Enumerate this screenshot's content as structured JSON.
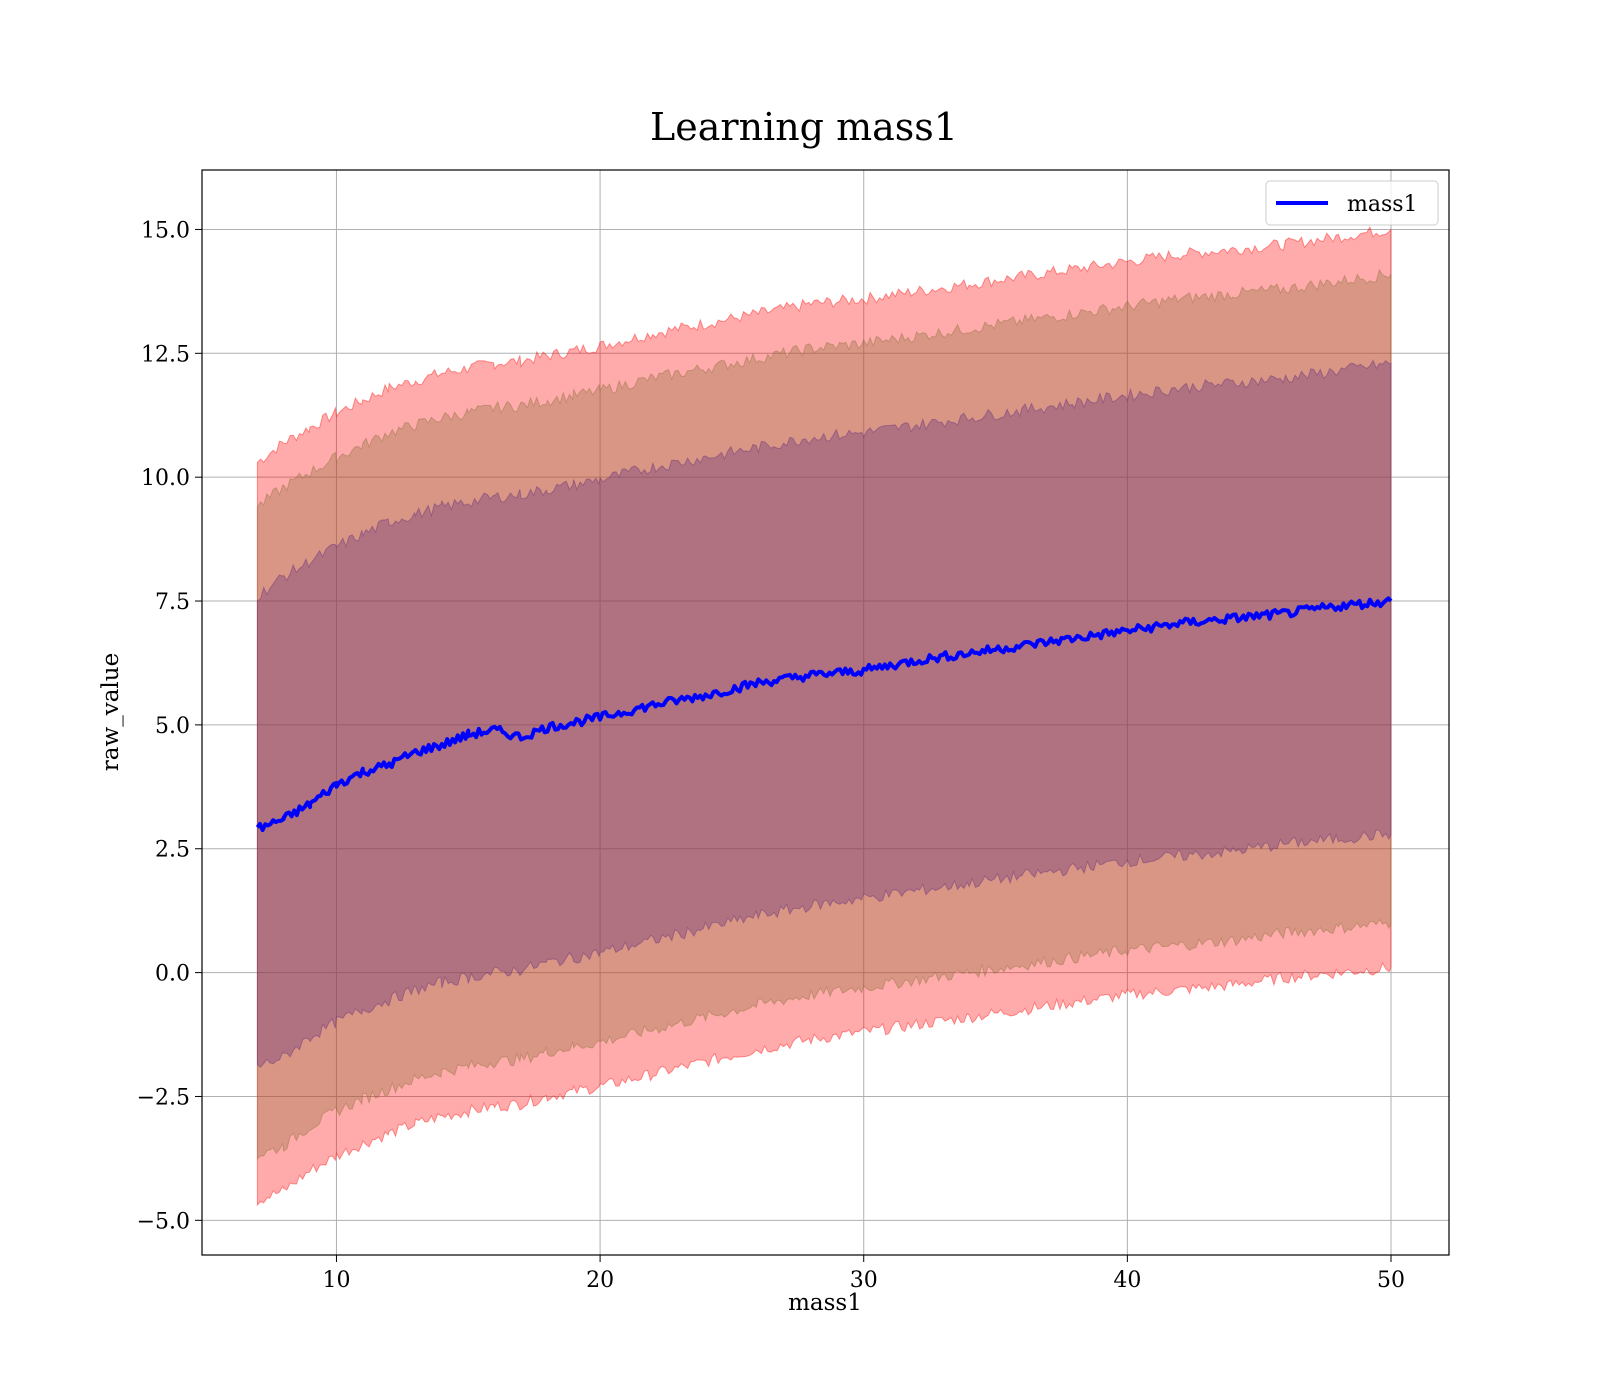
{
  "chart_data": {
    "type": "line",
    "title": "Learning mass1",
    "xlabel": "mass1",
    "ylabel": "raw_value",
    "xlim": [
      4.9,
      52.2
    ],
    "ylim": [
      -5.7,
      16.2
    ],
    "x_ticks": [
      10,
      20,
      30,
      40,
      50
    ],
    "x_tick_labels": [
      "10",
      "20",
      "30",
      "40",
      "50"
    ],
    "y_ticks": [
      -5.0,
      -2.5,
      0.0,
      2.5,
      5.0,
      7.5,
      10.0,
      12.5,
      15.0
    ],
    "y_tick_labels": [
      "−5.0",
      "−2.5",
      "0.0",
      "2.5",
      "5.0",
      "7.5",
      "10.0",
      "12.5",
      "15.0"
    ],
    "grid": true,
    "legend": {
      "position": "top-right",
      "entries": [
        "mass1"
      ]
    },
    "x": [
      7,
      8,
      9,
      10,
      11,
      12,
      13,
      14,
      15,
      16,
      17,
      18,
      19,
      20,
      22,
      24,
      26,
      28,
      30,
      32,
      34,
      36,
      38,
      40,
      42,
      44,
      46,
      48,
      50
    ],
    "series": [
      {
        "name": "mass1",
        "color": "#0000ff",
        "values": [
          2.9,
          3.1,
          3.4,
          3.8,
          4.05,
          4.2,
          4.45,
          4.6,
          4.8,
          4.9,
          4.75,
          4.95,
          5.05,
          5.15,
          5.4,
          5.6,
          5.85,
          6.0,
          6.1,
          6.3,
          6.45,
          6.6,
          6.75,
          6.9,
          7.05,
          7.15,
          7.25,
          7.4,
          7.5
        ]
      }
    ],
    "bands": [
      {
        "color": "#ff0000",
        "upper": [
          10.3,
          10.7,
          11.0,
          11.3,
          11.55,
          11.8,
          11.95,
          12.1,
          12.2,
          12.3,
          12.35,
          12.45,
          12.55,
          12.65,
          12.9,
          13.1,
          13.3,
          13.5,
          13.6,
          13.75,
          13.9,
          14.05,
          14.2,
          14.35,
          14.5,
          14.6,
          14.7,
          14.85,
          15.0
        ],
        "lower": [
          -4.6,
          -4.4,
          -4.0,
          -3.7,
          -3.45,
          -3.25,
          -3.05,
          -2.9,
          -2.8,
          -2.7,
          -2.65,
          -2.5,
          -2.4,
          -2.3,
          -2.05,
          -1.8,
          -1.55,
          -1.35,
          -1.2,
          -1.05,
          -0.9,
          -0.75,
          -0.6,
          -0.45,
          -0.35,
          -0.25,
          -0.1,
          0.0,
          0.1
        ]
      },
      {
        "color": "#8b6d3a",
        "upper": [
          9.4,
          9.8,
          10.1,
          10.4,
          10.65,
          10.9,
          11.05,
          11.2,
          11.3,
          11.4,
          11.45,
          11.55,
          11.65,
          11.75,
          12.0,
          12.2,
          12.4,
          12.6,
          12.7,
          12.85,
          13.0,
          13.15,
          13.3,
          13.45,
          13.6,
          13.7,
          13.8,
          13.95,
          14.1
        ],
        "lower": [
          -3.7,
          -3.5,
          -3.1,
          -2.8,
          -2.55,
          -2.35,
          -2.15,
          -2.0,
          -1.9,
          -1.8,
          -1.75,
          -1.6,
          -1.5,
          -1.4,
          -1.15,
          -0.9,
          -0.65,
          -0.45,
          -0.3,
          -0.15,
          0.0,
          0.15,
          0.3,
          0.45,
          0.55,
          0.65,
          0.8,
          0.9,
          1.0
        ]
      },
      {
        "color": "#5e2a7a",
        "upper": [
          7.6,
          8.0,
          8.3,
          8.6,
          8.85,
          9.1,
          9.25,
          9.4,
          9.5,
          9.6,
          9.65,
          9.75,
          9.85,
          9.95,
          10.2,
          10.4,
          10.6,
          10.8,
          10.9,
          11.05,
          11.2,
          11.35,
          11.5,
          11.65,
          11.8,
          11.9,
          12.0,
          12.15,
          12.3
        ],
        "lower": [
          -1.9,
          -1.7,
          -1.3,
          -1.0,
          -0.75,
          -0.55,
          -0.35,
          -0.2,
          -0.1,
          0.0,
          0.05,
          0.2,
          0.3,
          0.4,
          0.65,
          0.9,
          1.15,
          1.35,
          1.5,
          1.65,
          1.8,
          1.95,
          2.1,
          2.25,
          2.35,
          2.45,
          2.6,
          2.7,
          2.8
        ]
      }
    ]
  }
}
